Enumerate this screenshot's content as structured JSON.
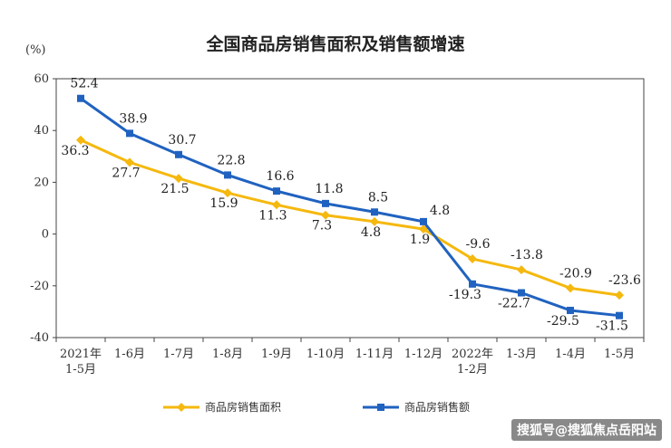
{
  "chart_data": {
    "type": "line",
    "title": "全国商品房销售面积及销售额增速",
    "ylabel": "(%)",
    "ylim": [
      -40,
      60
    ],
    "yticks": [
      60,
      40,
      20,
      0,
      -20,
      -40
    ],
    "categories": [
      [
        "2021年",
        "1-5月"
      ],
      [
        "1-6月"
      ],
      [
        "1-7月"
      ],
      [
        "1-8月"
      ],
      [
        "1-9月"
      ],
      [
        "1-10月"
      ],
      [
        "1-11月"
      ],
      [
        "1-12月"
      ],
      [
        "2022年",
        "1-2月"
      ],
      [
        "1-3月"
      ],
      [
        "1-4月"
      ],
      [
        "1-5月"
      ]
    ],
    "series": [
      {
        "name": "商品房销售面积",
        "color": "#F5B80E",
        "marker": "diamond",
        "values": [
          36.3,
          27.7,
          21.5,
          15.9,
          11.3,
          7.3,
          4.8,
          1.9,
          -9.6,
          -13.8,
          -20.9,
          -23.6
        ],
        "labels": [
          "36.3",
          "27.7",
          "21.5",
          "15.9",
          "11.3",
          "7.3",
          "4.8",
          "1.9",
          "-9.6",
          "-13.8",
          "-20.9",
          "-23.6"
        ]
      },
      {
        "name": "商品房销售额",
        "color": "#2062C0",
        "marker": "square",
        "values": [
          52.4,
          38.9,
          30.7,
          22.8,
          16.6,
          11.8,
          8.5,
          4.8,
          -19.3,
          -22.7,
          -29.5,
          -31.5
        ],
        "labels": [
          "52.4",
          "38.9",
          "30.7",
          "22.8",
          "16.6",
          "11.8",
          "8.5",
          "4.8",
          "-19.3",
          "-22.7",
          "-29.5",
          "-31.5"
        ]
      }
    ],
    "grid": false,
    "legend": "bottom"
  },
  "legend": {
    "area_label": "商品房销售面积",
    "amount_label": "商品房销售额"
  },
  "watermark": "搜狐号@搜狐焦点岳阳站"
}
